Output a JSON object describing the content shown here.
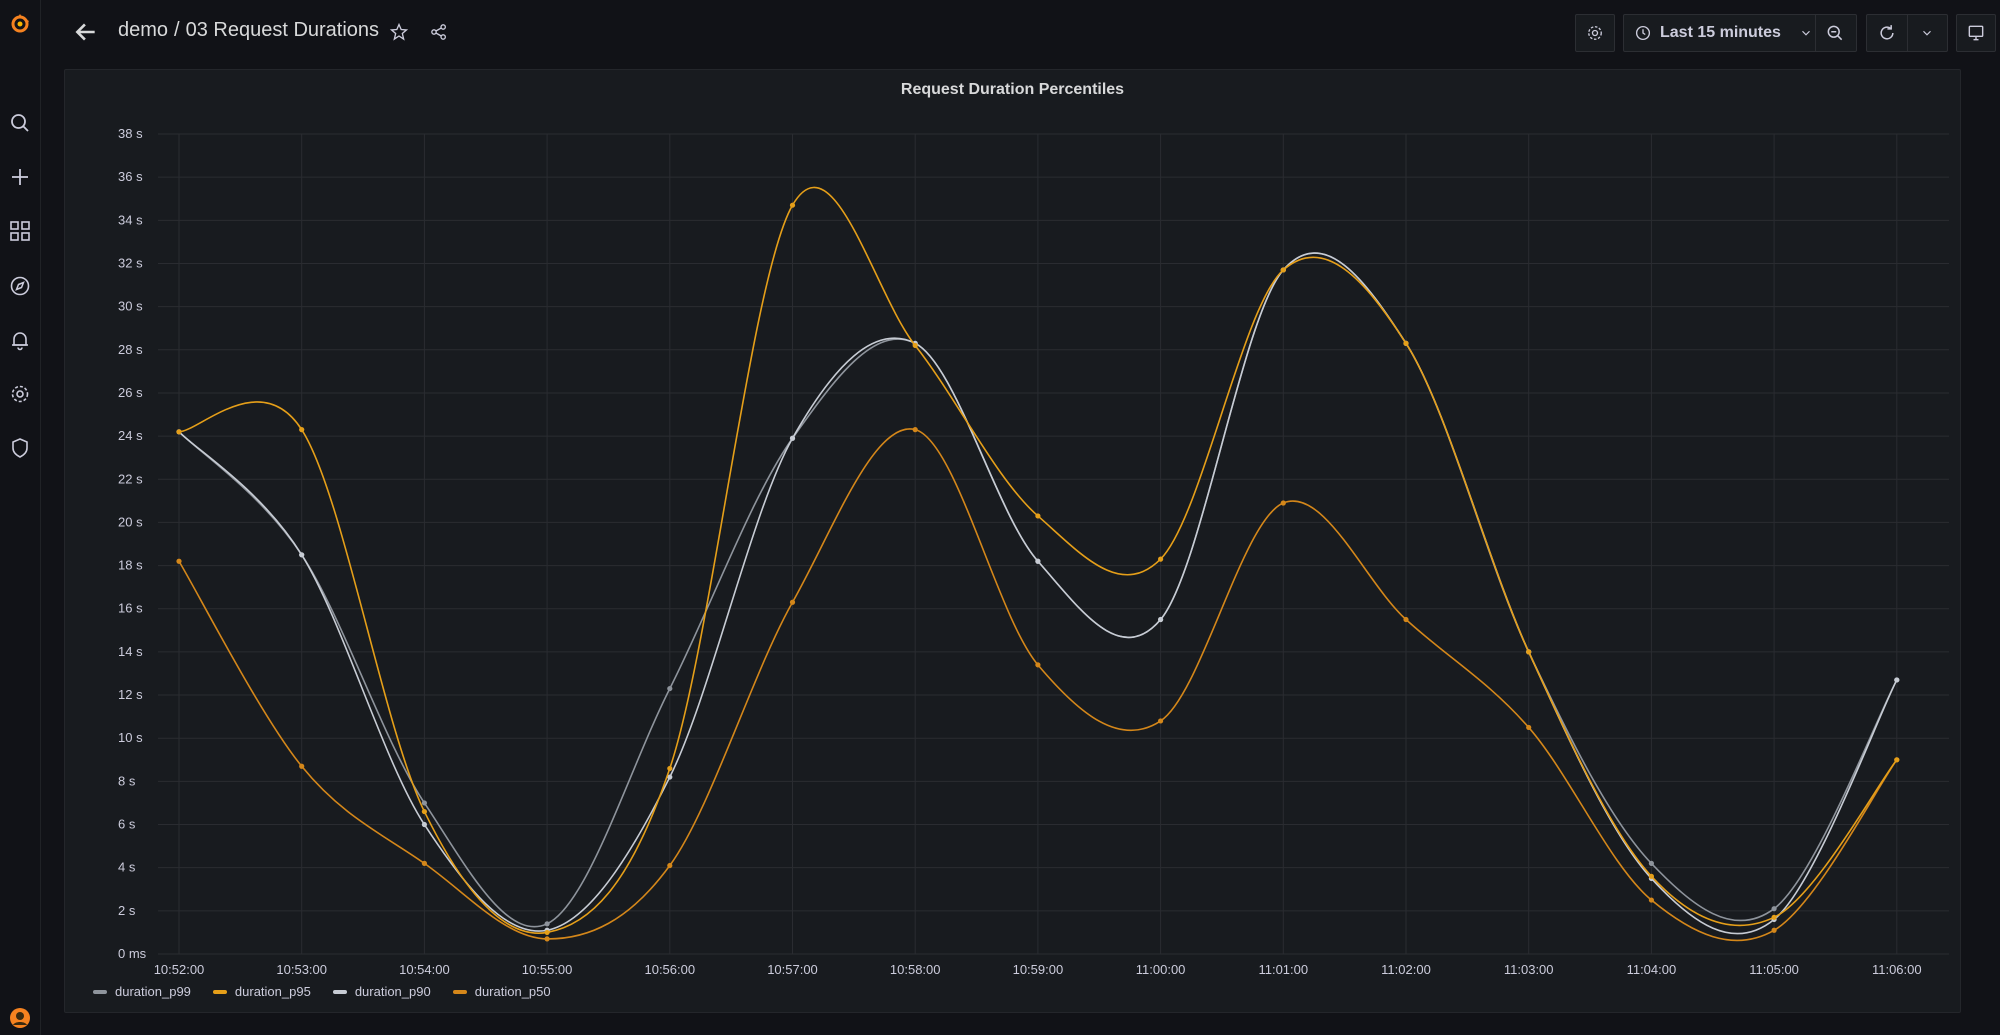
{
  "sidebar": {
    "items": [
      {
        "name": "grafana-logo-icon"
      },
      {
        "name": "search-icon"
      },
      {
        "name": "plus-icon"
      },
      {
        "name": "dashboards-icon"
      },
      {
        "name": "explore-compass-icon"
      },
      {
        "name": "alerting-bell-icon"
      },
      {
        "name": "configuration-gear-icon"
      },
      {
        "name": "server-admin-shield-icon"
      },
      {
        "name": "user-avatar-icon"
      }
    ]
  },
  "header": {
    "folder": "demo",
    "separator": "/",
    "dashboard_title": "03 Request Durations",
    "time_range_label": "Last 15 minutes"
  },
  "panel": {
    "title": "Request Duration Percentiles"
  },
  "colors": {
    "gray_series": "#8e949c",
    "orange_series": "#e59f19",
    "light_series": "#c7ccd4",
    "dark_orange_series": "#d4871a"
  },
  "chart_data": {
    "type": "line",
    "title": "Request Duration Percentiles",
    "xlabel": "",
    "ylabel": "",
    "ylim": [
      0,
      38
    ],
    "y_ticks": [
      "0 ms",
      "2 s",
      "4 s",
      "6 s",
      "8 s",
      "10 s",
      "12 s",
      "14 s",
      "16 s",
      "18 s",
      "20 s",
      "22 s",
      "24 s",
      "26 s",
      "28 s",
      "30 s",
      "32 s",
      "34 s",
      "36 s",
      "38 s"
    ],
    "x_ticks": [
      "10:52:00",
      "10:53:00",
      "10:54:00",
      "10:55:00",
      "10:56:00",
      "10:57:00",
      "10:58:00",
      "10:59:00",
      "11:00:00",
      "11:01:00",
      "11:02:00",
      "11:03:00",
      "11:04:00",
      "11:05:00",
      "11:06:00"
    ],
    "grid": true,
    "legend_position": "bottom-left",
    "series": [
      {
        "name": "duration_p99",
        "color": "#8e949c",
        "values": [
          24.2,
          18.5,
          7.0,
          1.4,
          12.3,
          23.9,
          28.3,
          18.2,
          15.5,
          31.7,
          28.3,
          14.0,
          4.2,
          2.1,
          12.7
        ]
      },
      {
        "name": "duration_p95",
        "color": "#e59f19",
        "values": [
          24.2,
          24.3,
          6.6,
          1.0,
          8.6,
          34.7,
          28.2,
          20.3,
          18.3,
          31.7,
          28.3,
          14.0,
          3.6,
          1.7,
          9.0
        ]
      },
      {
        "name": "duration_p90",
        "color": "#c7ccd4",
        "values": [
          24.2,
          18.5,
          6.0,
          1.1,
          8.2,
          23.9,
          28.3,
          18.2,
          15.5,
          31.7,
          28.3,
          14.0,
          3.5,
          1.6,
          12.7
        ]
      },
      {
        "name": "duration_p50",
        "color": "#d4871a",
        "values": [
          18.2,
          8.7,
          4.2,
          0.7,
          4.1,
          16.3,
          24.3,
          13.4,
          10.8,
          20.9,
          15.5,
          10.5,
          2.5,
          1.1,
          9.0
        ]
      }
    ]
  }
}
